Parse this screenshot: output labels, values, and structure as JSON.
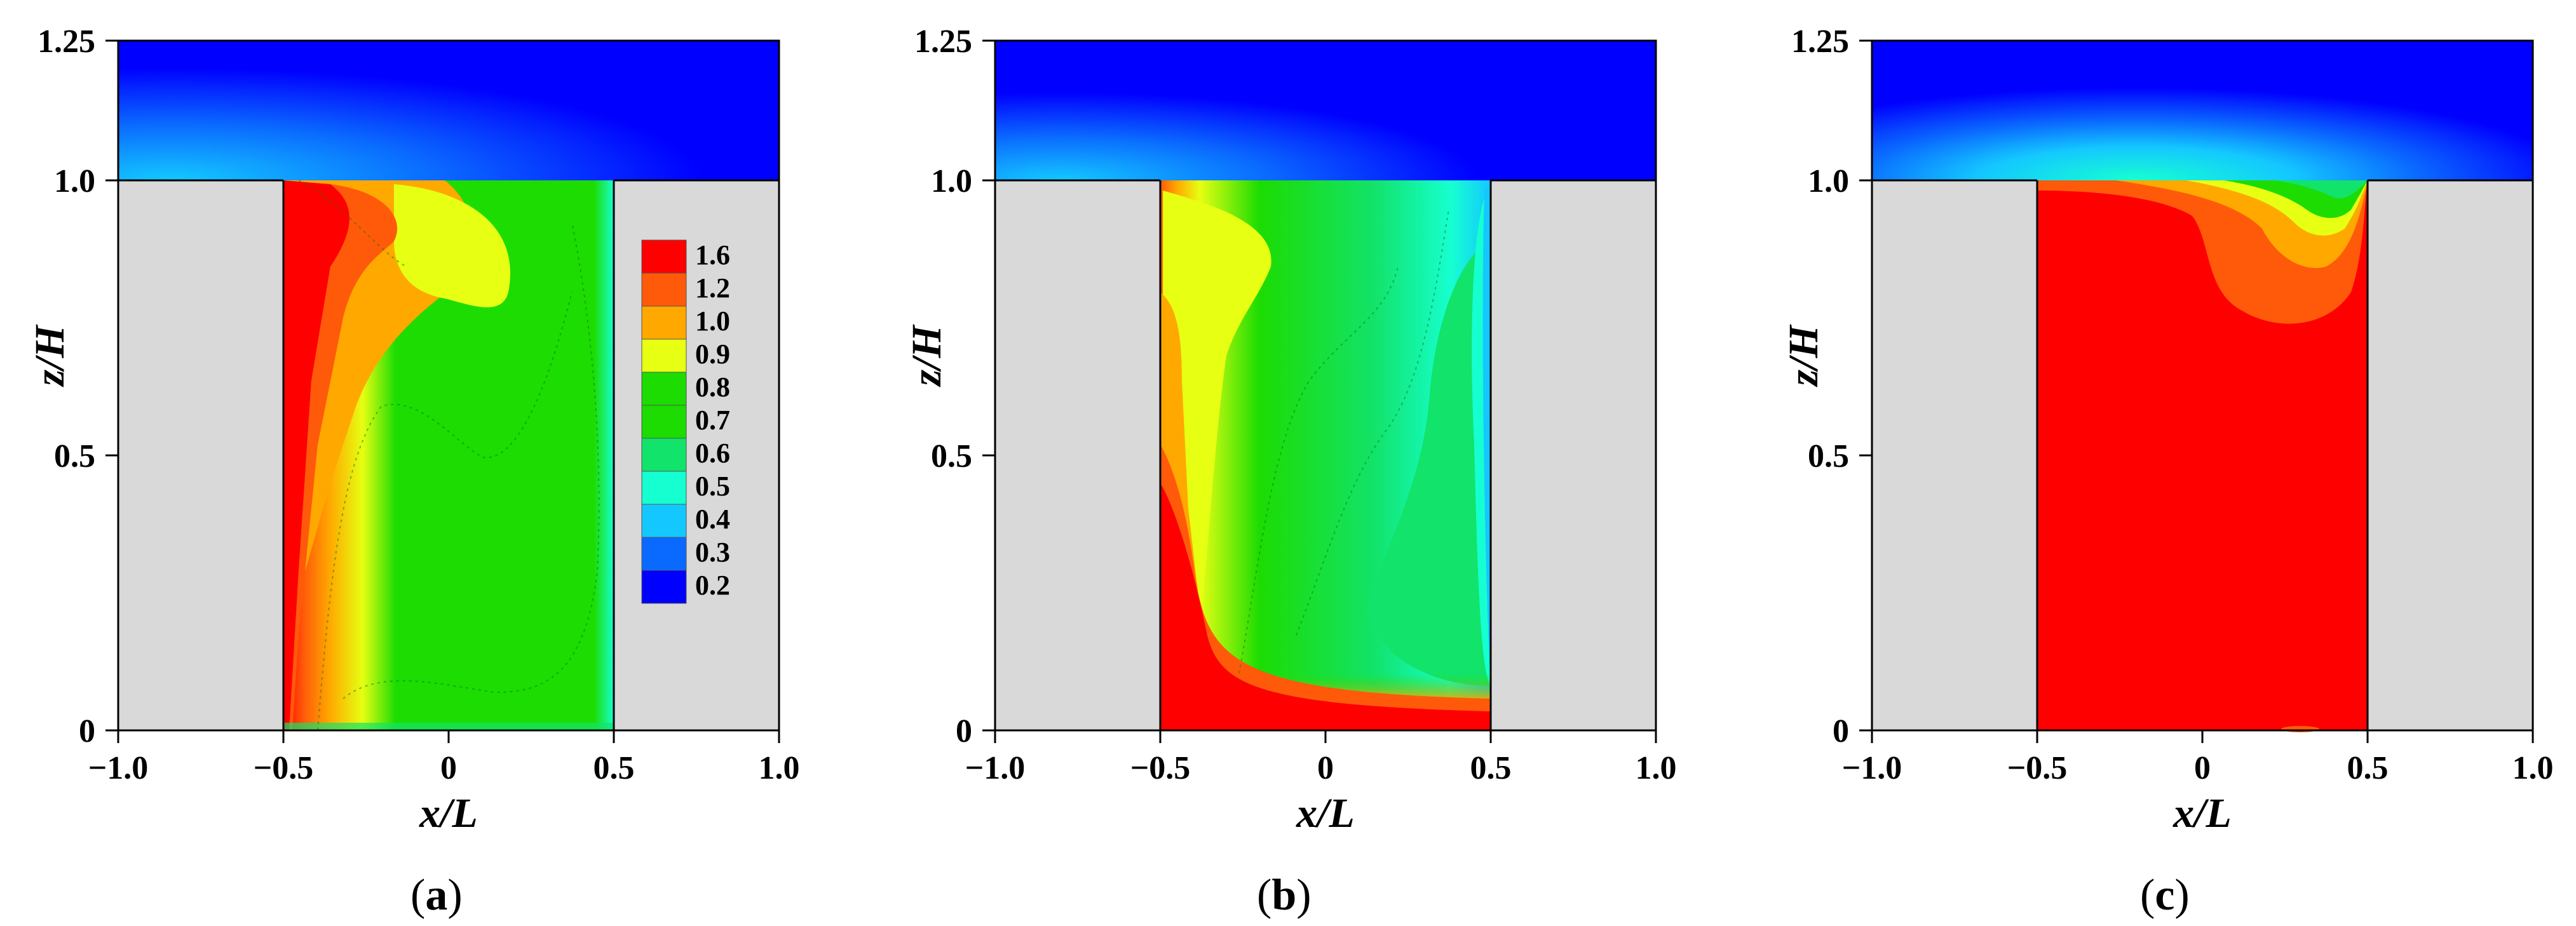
{
  "chart_data": [
    {
      "type": "heatmap",
      "caption": "a",
      "xlabel": "x/L",
      "ylabel": "z/H",
      "xlim": [
        -1.0,
        1.0
      ],
      "ylim": [
        0,
        1.25
      ],
      "xticks": [
        "−1.0",
        "−0.5",
        "0",
        "0.5",
        "1.0"
      ],
      "yticks": [
        "0",
        "0.5",
        "1.0",
        "1.25"
      ],
      "cavity_x": [
        -0.5,
        0.5
      ],
      "legend": {
        "placement": "inside-right",
        "levels": [
          "1.6",
          "1.2",
          "1.0",
          "0.9",
          "0.8",
          "0.7",
          "0.6",
          "0.5",
          "0.4",
          "0.3",
          "0.2"
        ]
      }
    },
    {
      "type": "heatmap",
      "caption": "b",
      "xlabel": "x/L",
      "ylabel": "z/H",
      "xlim": [
        -1.0,
        1.0
      ],
      "ylim": [
        0,
        1.25
      ],
      "xticks": [
        "−1.0",
        "−0.5",
        "0",
        "0.5",
        "1.0"
      ],
      "yticks": [
        "0",
        "0.5",
        "1.0",
        "1.25"
      ],
      "cavity_x": [
        -0.5,
        0.5
      ]
    },
    {
      "type": "heatmap",
      "caption": "c",
      "xlabel": "x/L",
      "ylabel": "z/H",
      "xlim": [
        -1.0,
        1.0
      ],
      "ylim": [
        0,
        1.25
      ],
      "xticks": [
        "−1.0",
        "−0.5",
        "0",
        "0.5",
        "1.0"
      ],
      "yticks": [
        "0",
        "0.5",
        "1.0",
        "1.25"
      ],
      "cavity_x": [
        -0.5,
        0.5
      ]
    }
  ],
  "colors": {
    "1.6": "#ff0000",
    "1.2": "#ff5a0a",
    "1.0": "#ffa800",
    "0.9": "#e6ff12",
    "0.8": "#1cdc02",
    "0.7": "#1cdc02",
    "0.6": "#12e36a",
    "0.5": "#16ffd0",
    "0.4": "#14c8ff",
    "0.3": "#0a6aff",
    "0.2": "#0000ff",
    "wall": "#d9d9d9"
  }
}
